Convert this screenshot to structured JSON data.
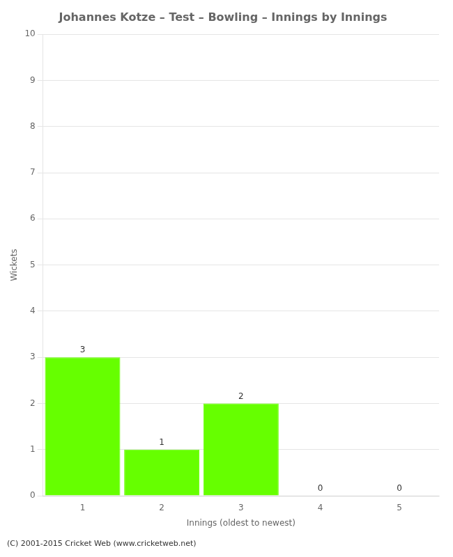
{
  "chart_data": {
    "type": "bar",
    "title": "Johannes Kotze – Test – Bowling – Innings by Innings",
    "xlabel": "Innings (oldest to newest)",
    "ylabel": "Wickets",
    "categories": [
      1,
      2,
      3,
      4,
      5
    ],
    "values": [
      3,
      1,
      2,
      0,
      0
    ],
    "color": "#66ff00",
    "ylim": [
      0,
      10
    ],
    "yticks": [
      0,
      1,
      2,
      3,
      4,
      5,
      6,
      7,
      8,
      9,
      10
    ],
    "grid": true,
    "data_labels": true,
    "footer": "(C) 2001-2015 Cricket Web (www.cricketweb.net)"
  }
}
